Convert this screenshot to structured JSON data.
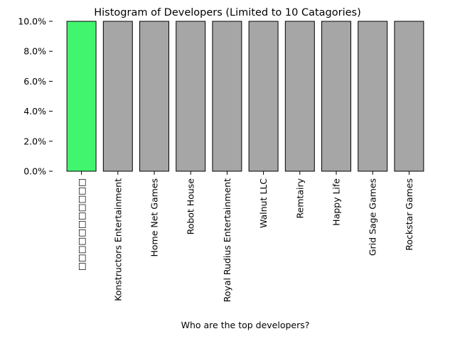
{
  "chart_data": {
    "type": "bar",
    "title": "Histogram of Developers (Limited to 10 Catagories)",
    "xlabel": "Who are the top developers?",
    "ylabel": "",
    "ylim": [
      0,
      0.1
    ],
    "yticks": [
      0.0,
      0.02,
      0.04,
      0.06,
      0.08,
      0.1
    ],
    "ytick_labels": [
      "0.0%",
      "2.0%",
      "4.0%",
      "6.0%",
      "8.0%",
      "10.0%"
    ],
    "categories": [
      "□□□□□□□□□□□",
      "Konstructors Entertainment",
      "Home Net Games",
      "Robot House",
      "Royal Rudius Entertainment",
      "Walnut LLC",
      "Remtairy",
      "Happy Life",
      "Grid Sage Games",
      "Rockstar Games"
    ],
    "values": [
      0.1,
      0.1,
      0.1,
      0.1,
      0.1,
      0.1,
      0.1,
      0.1,
      0.1,
      0.1
    ],
    "colors": {
      "highlight": "#42f56f",
      "default": "#a6a6a6",
      "edge": "#000000"
    },
    "highlight_index": 0,
    "grid": false,
    "legend": "none"
  }
}
